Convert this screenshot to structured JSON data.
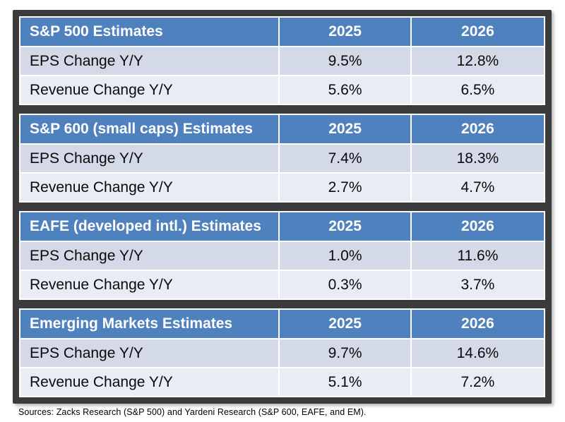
{
  "tables": [
    {
      "title": "S&P 500 Estimates",
      "col1": "2025",
      "col2": "2026",
      "rows": [
        {
          "label": "EPS Change Y/Y",
          "v1": "9.5%",
          "v2": "12.8%"
        },
        {
          "label": "Revenue Change Y/Y",
          "v1": "5.6%",
          "v2": "6.5%"
        }
      ]
    },
    {
      "title": "S&P 600 (small caps) Estimates",
      "col1": "2025",
      "col2": "2026",
      "rows": [
        {
          "label": "EPS Change Y/Y",
          "v1": "7.4%",
          "v2": "18.3%"
        },
        {
          "label": "Revenue Change Y/Y",
          "v1": "2.7%",
          "v2": "4.7%"
        }
      ]
    },
    {
      "title": "EAFE (developed intl.) Estimates",
      "col1": "2025",
      "col2": "2026",
      "rows": [
        {
          "label": "EPS Change Y/Y",
          "v1": "1.0%",
          "v2": "11.6%"
        },
        {
          "label": "Revenue Change Y/Y",
          "v1": "0.3%",
          "v2": "3.7%"
        }
      ]
    },
    {
      "title": "Emerging Markets Estimates",
      "col1": "2025",
      "col2": "2026",
      "rows": [
        {
          "label": "EPS Change Y/Y",
          "v1": "9.7%",
          "v2": "14.6%"
        },
        {
          "label": "Revenue Change Y/Y",
          "v1": "5.1%",
          "v2": "7.2%"
        }
      ]
    }
  ],
  "footer": {
    "sources": "Sources: Zacks Research (S&P 500) and Yardeni Research (S&P 600, EAFE, and EM)."
  },
  "colors": {
    "header_blue": "#4e81bd",
    "row_shaded": "#d3d9e6",
    "row_light": "#e9ecf4",
    "frame_dark": "#3b3b3b",
    "header_text": "#ffffff",
    "body_text": "#0a0a0a"
  },
  "chart_data": [
    {
      "type": "table",
      "title": "S&P 500 Estimates",
      "columns": [
        "2025",
        "2026"
      ],
      "rows": [
        {
          "label": "EPS Change Y/Y",
          "values_pct": [
            9.5,
            12.8
          ]
        },
        {
          "label": "Revenue Change Y/Y",
          "values_pct": [
            5.6,
            6.5
          ]
        }
      ]
    },
    {
      "type": "table",
      "title": "S&P 600 (small caps) Estimates",
      "columns": [
        "2025",
        "2026"
      ],
      "rows": [
        {
          "label": "EPS Change Y/Y",
          "values_pct": [
            7.4,
            18.3
          ]
        },
        {
          "label": "Revenue Change Y/Y",
          "values_pct": [
            2.7,
            4.7
          ]
        }
      ]
    },
    {
      "type": "table",
      "title": "EAFE (developed intl.) Estimates",
      "columns": [
        "2025",
        "2026"
      ],
      "rows": [
        {
          "label": "EPS Change Y/Y",
          "values_pct": [
            1.0,
            11.6
          ]
        },
        {
          "label": "Revenue Change Y/Y",
          "values_pct": [
            0.3,
            3.7
          ]
        }
      ]
    },
    {
      "type": "table",
      "title": "Emerging Markets Estimates",
      "columns": [
        "2025",
        "2026"
      ],
      "rows": [
        {
          "label": "EPS Change Y/Y",
          "values_pct": [
            9.7,
            14.6
          ]
        },
        {
          "label": "Revenue Change Y/Y",
          "values_pct": [
            5.1,
            7.2
          ]
        }
      ]
    }
  ]
}
